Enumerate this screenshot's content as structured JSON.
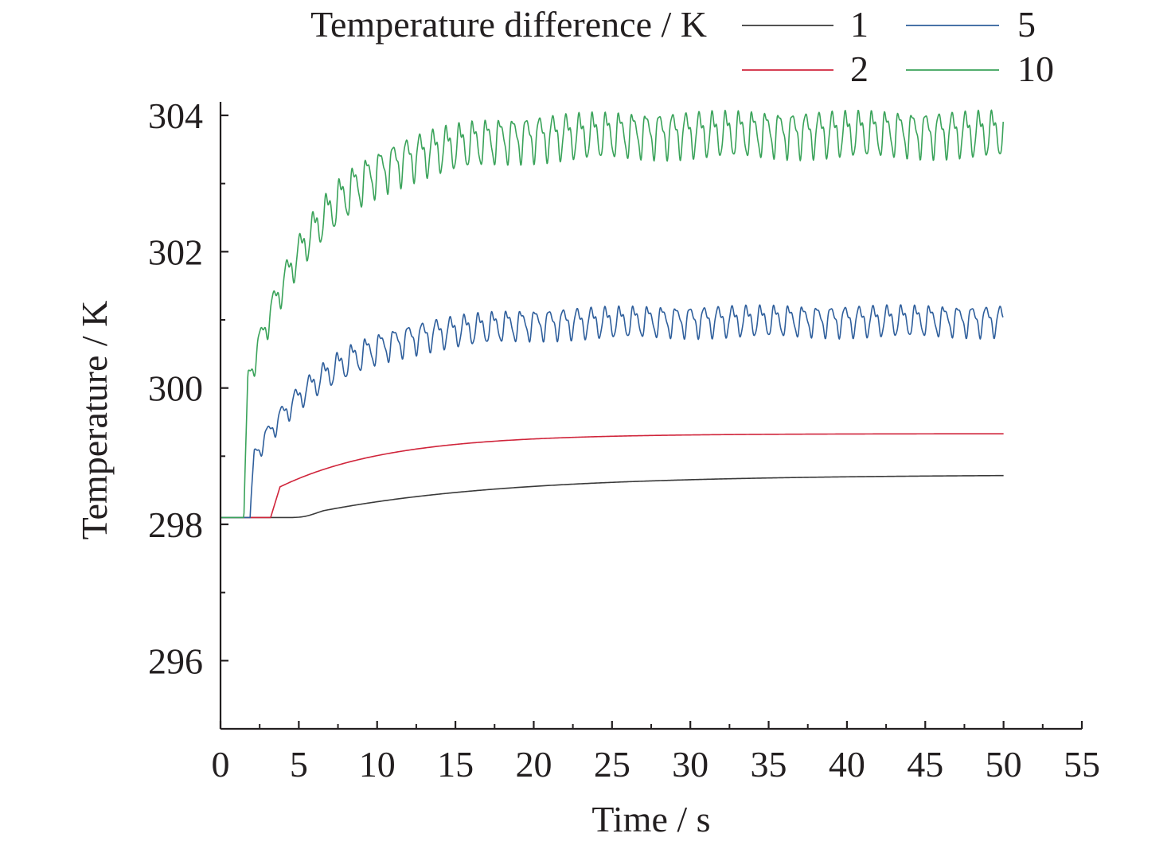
{
  "chart_data": {
    "type": "line",
    "title": "",
    "xlabel": "Time / s",
    "ylabel": "Temperature / K",
    "xlim": [
      0,
      55
    ],
    "ylim": [
      295,
      304
    ],
    "xticks": [
      0,
      5,
      10,
      15,
      20,
      25,
      30,
      35,
      40,
      45,
      50,
      55
    ],
    "yticks": [
      296,
      298,
      300,
      302,
      304
    ],
    "grid": false,
    "legend": {
      "title": "Temperature difference / K",
      "position": "top"
    },
    "series": [
      {
        "name": "1",
        "color": "#3a3a3a",
        "kind": "smooth",
        "start": 298.1,
        "onset": 4.5,
        "jump": 0.0,
        "final": 298.73,
        "tau": 12.0
      },
      {
        "name": "2",
        "color": "#d0253b",
        "kind": "smooth",
        "start": 298.1,
        "onset": 3.2,
        "jump": 0.38,
        "final": 299.33,
        "tau": 7.0
      },
      {
        "name": "5",
        "color": "#2f5f9c",
        "kind": "oscillating",
        "start": 298.1,
        "onset": 1.9,
        "jump": 0.8,
        "final": 301.0,
        "tau": 5.0,
        "amplitude": 0.19,
        "period": 0.9
      },
      {
        "name": "10",
        "color": "#3aa35a",
        "kind": "oscillating",
        "start": 298.1,
        "onset": 1.5,
        "jump": 1.8,
        "final": 303.75,
        "tau": 4.5,
        "amplitude": 0.28,
        "period": 0.85
      }
    ]
  }
}
